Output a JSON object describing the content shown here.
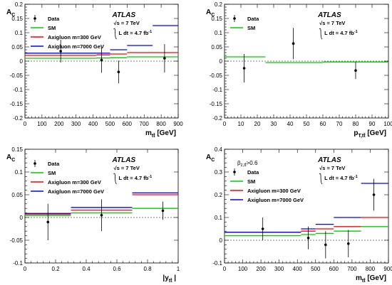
{
  "chart_data": [
    {
      "type": "scatter",
      "panel": "top-left",
      "ylabel": "A_C",
      "xlabel": "m_tt̄ [GeV]",
      "ylabel_main": "A",
      "ylabel_sub": "C",
      "xlabel_main": "m",
      "xlabel_sub": "tt̄",
      "xlabel_unit": "[GeV]",
      "xlim": [
        0,
        900
      ],
      "ylim": [
        -0.2,
        0.2
      ],
      "xticks": [
        0,
        100,
        200,
        300,
        400,
        500,
        600,
        700,
        800,
        900
      ],
      "yticks": [
        -0.2,
        -0.15,
        -0.1,
        -0.05,
        0,
        0.05,
        0.1,
        0.15,
        0.2
      ],
      "ytick_labels": [
        "-0.2",
        "-0.15",
        "-0.1",
        "-0.05",
        "0",
        "0.05",
        "0.1",
        "0.15",
        "0.2"
      ],
      "extra_label": "",
      "atlas": "ATLAS",
      "sqrt_s": "s = 7 TeV",
      "lumi": "L dt = 4.7 fb",
      "lumi_sup": "-1",
      "legend": [
        "Data",
        "SM",
        "Axigluon m=300 GeV",
        "Axigluon m=7000 GeV"
      ],
      "data": {
        "x": [
          210,
          450,
          550,
          820
        ],
        "y": [
          0.035,
          0.004,
          -0.038,
          0.01
        ],
        "yerr": [
          0.04,
          0.045,
          0.04,
          0.05
        ]
      },
      "series": [
        {
          "name": "SM",
          "color": "#00cc00",
          "edges": [
            0,
            420,
            500,
            600,
            900
          ],
          "values": [
            0.01,
            0.011,
            0.012,
            0.015
          ]
        },
        {
          "name": "Axigluon m=300 GeV",
          "color": "#ff0000",
          "edges": [
            0,
            420,
            500,
            600,
            900
          ],
          "values": [
            0.02,
            0.022,
            0.025,
            0.03
          ]
        },
        {
          "name": "Axigluon m=7000 GeV",
          "color": "#0000ff",
          "edges": [
            0,
            420,
            500,
            600,
            750,
            900
          ],
          "values": [
            0.028,
            0.028,
            0.04,
            0.055,
            0.125
          ]
        }
      ]
    },
    {
      "type": "scatter",
      "panel": "top-right",
      "ylabel": "A_C",
      "xlabel": "p_T,tt̄ [GeV]",
      "ylabel_main": "A",
      "ylabel_sub": "C",
      "xlabel_main": "p",
      "xlabel_sub": "T,tt̄",
      "xlabel_unit": "[GeV]",
      "xlim": [
        0,
        100
      ],
      "ylim": [
        -0.2,
        0.2
      ],
      "xticks": [
        0,
        10,
        20,
        30,
        40,
        50,
        60,
        70,
        80,
        90,
        100
      ],
      "yticks": [
        -0.2,
        -0.15,
        -0.1,
        -0.05,
        0,
        0.05,
        0.1,
        0.15,
        0.2
      ],
      "ytick_labels": [
        "-0.2",
        "-0.15",
        "-0.1",
        "-0.05",
        "0",
        "0.05",
        "0.1",
        "0.15",
        "0.2"
      ],
      "extra_label": "",
      "atlas": "ATLAS",
      "sqrt_s": "s = 7 TeV",
      "lumi": "L dt = 4.7 fb",
      "lumi_sup": "-1",
      "legend": [
        "Data",
        "SM"
      ],
      "data": {
        "x": [
          12,
          42,
          80
        ],
        "y": [
          -0.025,
          0.062,
          -0.033
        ],
        "yerr": [
          0.05,
          0.055,
          0.03
        ]
      },
      "series": [
        {
          "name": "SM",
          "color": "#00cc00",
          "edges": [
            0,
            25,
            60,
            100
          ],
          "values": [
            0.015,
            -0.005,
            -0.003
          ]
        }
      ]
    },
    {
      "type": "scatter",
      "panel": "bottom-left",
      "ylabel": "A_C",
      "xlabel": "|y_tt̄|",
      "ylabel_main": "A",
      "ylabel_sub": "C",
      "xlabel_main": "|y",
      "xlabel_sub": "tt̄",
      "xlabel_unit": "|",
      "xlim": [
        0,
        1
      ],
      "ylim": [
        -0.1,
        0.15
      ],
      "xticks": [
        0,
        0.2,
        0.4,
        0.6,
        0.8,
        1
      ],
      "xtick_labels": [
        "0",
        "0.2",
        "0.4",
        "0.6",
        "0.8",
        "1"
      ],
      "yticks": [
        -0.1,
        -0.05,
        0,
        0.05,
        0.1,
        0.15
      ],
      "ytick_labels": [
        "-0.1",
        "-0.05",
        "0",
        "0.05",
        "0.1",
        "0.15"
      ],
      "extra_label": "",
      "atlas": "ATLAS",
      "sqrt_s": "s = 7 TeV",
      "lumi": "L dt = 4.7 fb",
      "lumi_sup": "-1",
      "legend": [
        "Data",
        "SM",
        "Axigluon m=300 GeV",
        "Axigluon m=7000 GeV"
      ],
      "data": {
        "x": [
          0.15,
          0.5,
          0.9
        ],
        "y": [
          -0.01,
          0.005,
          0.015
        ],
        "yerr": [
          0.04,
          0.035,
          0.02
        ]
      },
      "series": [
        {
          "name": "SM",
          "color": "#00cc00",
          "edges": [
            0,
            0.3,
            0.7,
            1
          ],
          "values": [
            0.004,
            0.01,
            0.02
          ]
        },
        {
          "name": "Axigluon m=300 GeV",
          "color": "#ff0000",
          "edges": [
            0,
            0.3,
            0.7,
            1
          ],
          "values": [
            0.007,
            0.016,
            0.05
          ]
        },
        {
          "name": "Axigluon m=7000 GeV",
          "color": "#0000ff",
          "edges": [
            0,
            0.3,
            0.7,
            1
          ],
          "values": [
            0.009,
            0.022,
            0.054
          ]
        }
      ]
    },
    {
      "type": "scatter",
      "panel": "bottom-right",
      "ylabel": "A_C",
      "xlabel": "m_tt̄ [GeV]",
      "ylabel_main": "A",
      "ylabel_sub": "C",
      "xlabel_main": "m",
      "xlabel_sub": "tt̄",
      "xlabel_unit": "[GeV]",
      "xlim": [
        0,
        900
      ],
      "ylim": [
        -0.1,
        0.4
      ],
      "xticks": [
        0,
        100,
        200,
        300,
        400,
        500,
        600,
        700,
        800,
        900
      ],
      "yticks": [
        -0.1,
        0,
        0.1,
        0.2,
        0.3,
        0.4
      ],
      "ytick_labels": [
        "-0.1",
        "0",
        "0.1",
        "0.2",
        "0.3",
        "0.4"
      ],
      "extra_label": "β_z,tt̄ > 0.6",
      "atlas": "ATLAS",
      "sqrt_s": "s = 7 TeV",
      "lumi": "L dt = 4.7 fb",
      "lumi_sup": "-1",
      "legend": [
        "Data",
        "SM",
        "Axigluon m=300 GeV",
        "Axigluon m=7000 GeV"
      ],
      "data": {
        "x": [
          210,
          460,
          555,
          680,
          820
        ],
        "y": [
          0.05,
          0.01,
          -0.02,
          -0.015,
          0.2
        ],
        "yerr": [
          0.05,
          0.05,
          0.06,
          0.06,
          0.07
        ]
      },
      "series": [
        {
          "name": "SM",
          "color": "#00cc00",
          "edges": [
            0,
            420,
            500,
            600,
            750,
            900
          ],
          "values": [
            0.02,
            0.025,
            0.03,
            0.04,
            0.06
          ]
        },
        {
          "name": "Axigluon m=300 GeV",
          "color": "#ff0000",
          "edges": [
            0,
            420,
            500,
            600,
            750,
            900
          ],
          "values": [
            0.035,
            0.04,
            0.05,
            0.06,
            0.1
          ]
        },
        {
          "name": "Axigluon m=7000 GeV",
          "color": "#0000ff",
          "edges": [
            0,
            420,
            500,
            600,
            750,
            900
          ],
          "values": [
            0.035,
            0.05,
            0.07,
            0.1,
            0.25
          ]
        }
      ]
    }
  ]
}
